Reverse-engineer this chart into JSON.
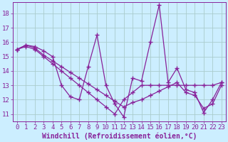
{
  "xlabel": "Windchill (Refroidissement éolien,°C)",
  "xlim": [
    -0.5,
    23.5
  ],
  "ylim": [
    10.5,
    18.8
  ],
  "xticks": [
    0,
    1,
    2,
    3,
    4,
    5,
    6,
    7,
    8,
    9,
    10,
    11,
    12,
    13,
    14,
    15,
    16,
    17,
    18,
    19,
    20,
    21,
    22,
    23
  ],
  "yticks": [
    11,
    12,
    13,
    14,
    15,
    16,
    17,
    18
  ],
  "background_color": "#cceeff",
  "grid_color": "#aacccc",
  "line_color": "#882299",
  "lines": [
    [
      15.5,
      15.8,
      15.7,
      15.4,
      15.0,
      13.0,
      12.2,
      12.0,
      14.3,
      16.5,
      13.0,
      11.7,
      10.8,
      13.5,
      13.3,
      16.0,
      18.6,
      13.2,
      14.2,
      12.7,
      12.5,
      11.1,
      12.0,
      13.2
    ],
    [
      15.5,
      15.8,
      15.6,
      15.1,
      14.7,
      14.3,
      13.9,
      13.5,
      13.1,
      12.7,
      12.3,
      11.9,
      11.5,
      11.8,
      12.0,
      12.3,
      12.6,
      12.9,
      13.2,
      12.5,
      12.3,
      11.4,
      11.7,
      13.0
    ],
    [
      15.5,
      15.7,
      15.5,
      15.0,
      14.5,
      14.0,
      13.5,
      13.0,
      12.5,
      12.0,
      11.5,
      11.0,
      12.0,
      12.5,
      13.0,
      13.0,
      13.0,
      13.0,
      13.0,
      13.0,
      13.0,
      13.0,
      13.0,
      13.2
    ]
  ],
  "marker": "+",
  "markersize": 5,
  "linewidth": 0.9,
  "font_color": "#882299",
  "tick_color": "#882299",
  "xlabel_fontsize": 7,
  "tick_fontsize": 6.5
}
